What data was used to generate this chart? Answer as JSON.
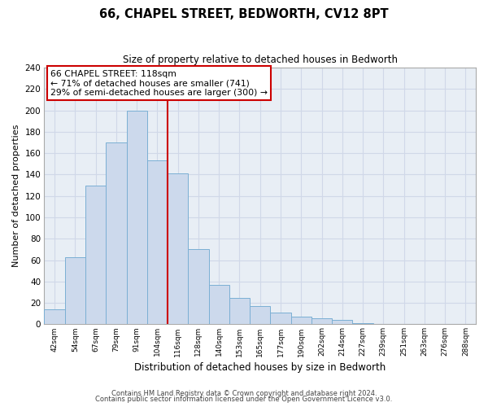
{
  "title": "66, CHAPEL STREET, BEDWORTH, CV12 8PT",
  "subtitle": "Size of property relative to detached houses in Bedworth",
  "xlabel": "Distribution of detached houses by size in Bedworth",
  "ylabel": "Number of detached properties",
  "bin_labels": [
    "42sqm",
    "54sqm",
    "67sqm",
    "79sqm",
    "91sqm",
    "104sqm",
    "116sqm",
    "128sqm",
    "140sqm",
    "153sqm",
    "165sqm",
    "177sqm",
    "190sqm",
    "202sqm",
    "214sqm",
    "227sqm",
    "239sqm",
    "251sqm",
    "263sqm",
    "276sqm",
    "288sqm"
  ],
  "bar_heights": [
    14,
    63,
    130,
    170,
    200,
    153,
    141,
    70,
    37,
    25,
    17,
    11,
    7,
    6,
    4,
    1,
    0,
    0,
    0,
    0,
    0
  ],
  "bar_color": "#ccd9ec",
  "bar_edge_color": "#7bafd4",
  "vline_color": "#cc0000",
  "vline_x": 6,
  "annotation_title": "66 CHAPEL STREET: 118sqm",
  "annotation_line1": "← 71% of detached houses are smaller (741)",
  "annotation_line2": "29% of semi-detached houses are larger (300) →",
  "annotation_box_facecolor": "#ffffff",
  "annotation_box_edgecolor": "#cc0000",
  "ylim": [
    0,
    240
  ],
  "yticks": [
    0,
    20,
    40,
    60,
    80,
    100,
    120,
    140,
    160,
    180,
    200,
    220,
    240
  ],
  "grid_color": "#d0d8e8",
  "plot_bg_color": "#e8eef5",
  "footer1": "Contains HM Land Registry data © Crown copyright and database right 2024.",
  "footer2": "Contains public sector information licensed under the Open Government Licence v3.0."
}
